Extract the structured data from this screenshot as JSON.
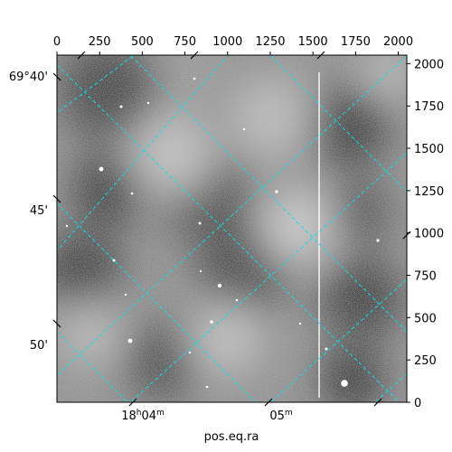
{
  "chart_data": {
    "type": "heatmap",
    "title": "",
    "xlabel": "pos.eq.ra",
    "ylabel": "",
    "pixel_axes": {
      "x_ticks": [
        "0",
        "250",
        "500",
        "750",
        "1000",
        "1250",
        "1500",
        "1750",
        "2000"
      ],
      "x_values": [
        0,
        250,
        500,
        750,
        1000,
        1250,
        1500,
        1750,
        2000
      ],
      "xlim": [
        0,
        2050
      ],
      "y_ticks": [
        "0",
        "250",
        "500",
        "750",
        "1000",
        "1250",
        "1500",
        "1750",
        "2000"
      ],
      "y_values": [
        0,
        250,
        500,
        750,
        1000,
        1250,
        1500,
        1750,
        2000
      ],
      "ylim": [
        0,
        2050
      ]
    },
    "world_axes": {
      "ra_tick_labels": [
        {
          "base": "18",
          "sup1": "h",
          "mid": "04",
          "sup2": "m"
        },
        {
          "base": "",
          "sup1": "",
          "mid": "05",
          "sup2": "m"
        }
      ],
      "dec_tick_labels": [
        "69°40'",
        "45'",
        "50'"
      ]
    },
    "grid": true,
    "grid_color": "#00e5e5",
    "colormap": "grayscale",
    "features": {
      "bright_sources": 22,
      "vertical_streak": true
    }
  }
}
